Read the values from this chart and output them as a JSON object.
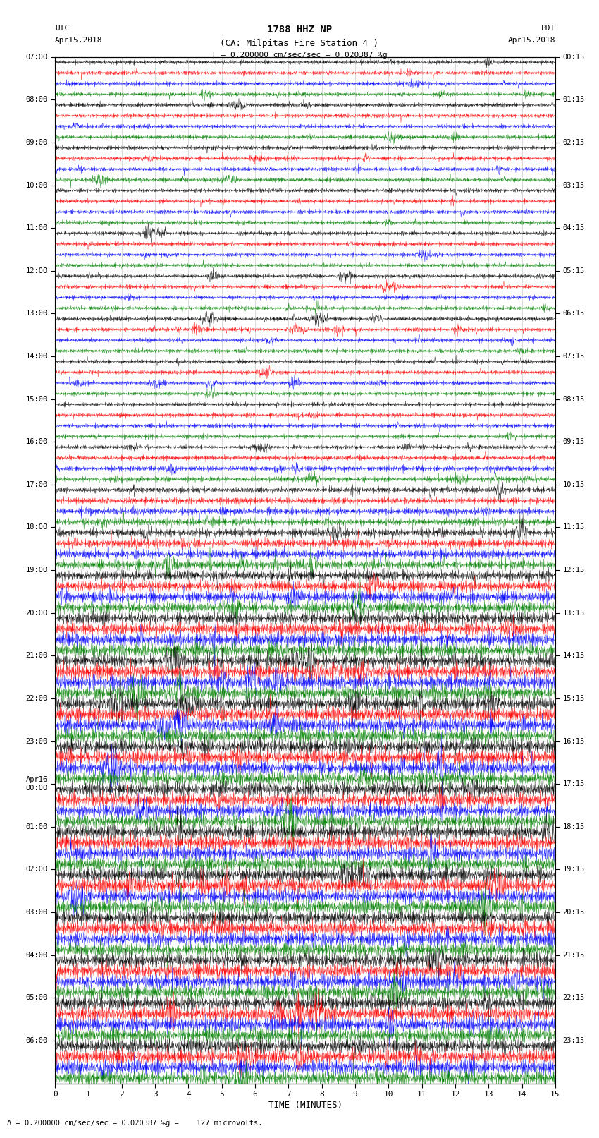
{
  "title_line1": "1788 HHZ NP",
  "title_line2": "(CA: Milpitas Fire Station 4 )",
  "scale_text": "| = 0.200000 cm/sec/sec = 0.020387 %g",
  "bottom_text": "Δ = 0.200000 cm/sec/sec = 0.020387 %g =    127 microvolts.",
  "left_label_line1": "UTC",
  "left_label_line2": "Apr15,2018",
  "right_label_line1": "PDT",
  "right_label_line2": "Apr15,2018",
  "xlabel": "TIME (MINUTES)",
  "left_times_labeled": {
    "0": "07:00",
    "4": "08:00",
    "8": "09:00",
    "12": "10:00",
    "16": "11:00",
    "20": "12:00",
    "24": "13:00",
    "28": "14:00",
    "32": "15:00",
    "36": "16:00",
    "40": "17:00",
    "44": "18:00",
    "48": "19:00",
    "52": "20:00",
    "56": "21:00",
    "60": "22:00",
    "64": "23:00",
    "68": "Apr16\n00:00",
    "72": "01:00",
    "76": "02:00",
    "80": "03:00",
    "84": "04:00",
    "88": "05:00",
    "92": "06:00"
  },
  "right_times_labeled": {
    "0": "00:15",
    "4": "01:15",
    "8": "02:15",
    "12": "03:15",
    "16": "04:15",
    "20": "05:15",
    "24": "06:15",
    "28": "07:15",
    "32": "08:15",
    "36": "09:15",
    "40": "10:15",
    "44": "11:15",
    "48": "12:15",
    "52": "13:15",
    "56": "14:15",
    "60": "15:15",
    "64": "16:15",
    "68": "17:15",
    "72": "18:15",
    "76": "19:15",
    "80": "20:15",
    "84": "21:15",
    "88": "22:15",
    "92": "23:15"
  },
  "n_rows": 96,
  "colors_cycle": [
    "black",
    "red",
    "blue",
    "green"
  ],
  "bg_color": "#ffffff",
  "noise_amp_early": 0.035,
  "noise_amp_late": 0.12,
  "transition_row": 36,
  "seed": 42,
  "lw": 0.28
}
